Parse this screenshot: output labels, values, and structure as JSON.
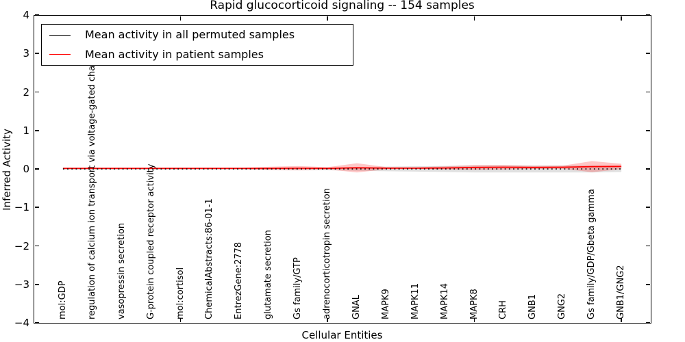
{
  "figure": {
    "title": "Rapid glucocorticoid signaling -- 154 samples",
    "xlabel": "Cellular Entities",
    "ylabel": "Inferred Activity"
  },
  "legend": {
    "entries": [
      {
        "label": "Mean activity in all permuted samples",
        "color": "#000000"
      },
      {
        "label": "Mean activity in patient samples",
        "color": "#ff0000"
      }
    ],
    "position": "upper left"
  },
  "chart_data": {
    "type": "line",
    "title": "Rapid glucocorticoid signaling -- 154 samples",
    "xlabel": "Cellular Entities",
    "ylabel": "Inferred Activity",
    "ylim": [
      -4,
      4
    ],
    "ytick_values": [
      4,
      3,
      2,
      1,
      0,
      -1,
      -2,
      -3,
      -4
    ],
    "ytick_labels": [
      "4",
      "3",
      "2",
      "1",
      "0",
      "−1",
      "−2",
      "−3",
      "−4"
    ],
    "xtick_category_indices": [
      4,
      9,
      14,
      19
    ],
    "grid": false,
    "legend_position": "upper left",
    "categories": [
      "mol:GDP",
      "regulation of calcium ion transport via voltage-gated channels",
      "vasopressin secretion",
      "G-protein coupled receptor activity",
      "mol:cortisol",
      "ChemicalAbstracts:86-01-1",
      "EntrezGene:2778",
      "glutamate secretion",
      "Gs family/GTP",
      "adrenocorticotropin secretion",
      "GNAL",
      "MAPK9",
      "MAPK11",
      "MAPK14",
      "MAPK8",
      "CRH",
      "GNB1",
      "GNG2",
      "Gs family/GDP/Gbeta gamma",
      "GNB1/GNG2"
    ],
    "series": [
      {
        "name": "Mean activity in all permuted samples",
        "color": "#000000",
        "line_style": "dotted",
        "band_color": "#c8c8c8",
        "band_opacity": 0.55,
        "values": [
          0,
          0,
          0,
          0,
          0,
          0,
          0,
          0,
          0,
          0,
          0,
          0,
          0,
          0,
          0,
          0,
          0,
          0,
          0,
          0
        ],
        "spread": [
          0.02,
          0.02,
          0.02,
          0.02,
          0.02,
          0.02,
          0.02,
          0.02,
          0.03,
          0.03,
          0.05,
          0.06,
          0.07,
          0.08,
          0.09,
          0.09,
          0.09,
          0.09,
          0.09,
          0.08
        ]
      },
      {
        "name": "Mean activity in patient samples",
        "color": "#ff0000",
        "line_style": "solid",
        "band_color": "#ff0000",
        "band_opacity": 0.22,
        "values": [
          0.015,
          0.015,
          0.015,
          0.015,
          0.015,
          0.015,
          0.015,
          0.015,
          0.02,
          0.015,
          0.03,
          0.02,
          0.02,
          0.025,
          0.04,
          0.045,
          0.04,
          0.045,
          0.06,
          0.065
        ],
        "spread": [
          0.015,
          0.015,
          0.015,
          0.015,
          0.015,
          0.015,
          0.015,
          0.04,
          0.055,
          0.03,
          0.12,
          0.03,
          0.025,
          0.04,
          0.06,
          0.06,
          0.04,
          0.04,
          0.145,
          0.07
        ]
      }
    ]
  }
}
